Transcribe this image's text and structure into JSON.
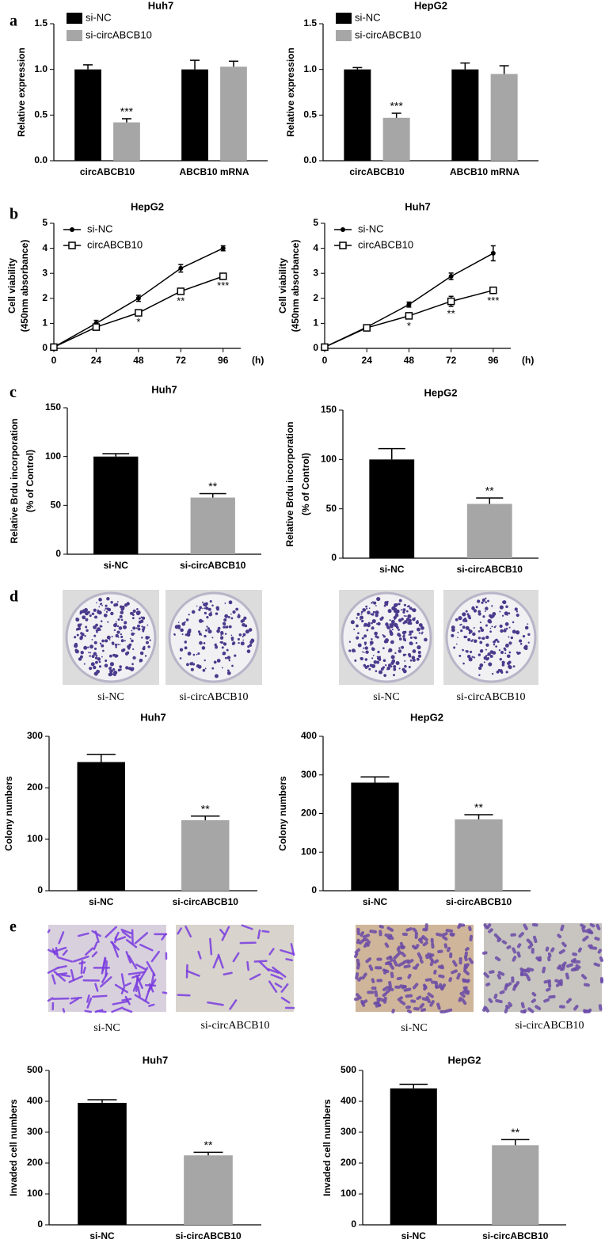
{
  "panel_labels": [
    "a",
    "b",
    "c",
    "d",
    "e"
  ],
  "photo_captions": {
    "d": [
      "si-NC",
      "si-circABCB10",
      "si-NC",
      "si-circABCB10"
    ],
    "e": [
      "si-NC",
      "si-circABCB10",
      "si-NC",
      "si-circABCB10"
    ]
  },
  "chart_data": [
    {
      "type": "bar",
      "title": "Huh7",
      "ylabel": [
        "Relative expression"
      ],
      "categories": [
        "circABCB10",
        "ABCB10 mRNA"
      ],
      "series": [
        {
          "name": "si-NC",
          "color": "#000000",
          "values": [
            1.0,
            1.0
          ],
          "errors": [
            0.05,
            0.1
          ]
        },
        {
          "name": "si-circABCB10",
          "color": "#a6a6a6",
          "values": [
            0.42,
            1.03
          ],
          "errors": [
            0.04,
            0.06
          ]
        }
      ],
      "ylim": [
        0,
        1.5
      ],
      "yticks": [
        {
          "value": 0,
          "label": "0.0"
        },
        0.5,
        {
          "value": 1,
          "label": "1.0"
        },
        1.5
      ],
      "annotations": [
        {
          "text": "***",
          "category": "circABCB10",
          "series": "si-circABCB10"
        }
      ]
    },
    {
      "type": "bar",
      "title": "HepG2",
      "ylabel": [
        "Relative expression"
      ],
      "categories": [
        "circABCB10",
        "ABCB10 mRNA"
      ],
      "series": [
        {
          "name": "si-NC",
          "color": "#000000",
          "values": [
            1.0,
            1.0
          ],
          "errors": [
            0.02,
            0.07
          ]
        },
        {
          "name": "si-circABCB10",
          "color": "#a6a6a6",
          "values": [
            0.47,
            0.95
          ],
          "errors": [
            0.05,
            0.09
          ]
        }
      ],
      "ylim": [
        0,
        1.5
      ],
      "yticks": [
        {
          "value": 0,
          "label": "0.0"
        },
        0.5,
        {
          "value": 1,
          "label": "1.0"
        },
        1.5
      ],
      "annotations": [
        {
          "text": "***",
          "category": "circABCB10",
          "series": "si-circABCB10"
        }
      ]
    },
    {
      "type": "line",
      "title": "HepG2",
      "ylabel": [
        "Cell viability",
        "(450nm absorbance)"
      ],
      "xlabel": "(h)",
      "x": [
        0,
        24,
        48,
        72,
        96
      ],
      "xlim": [
        0,
        106
      ],
      "xticks": [
        0,
        24,
        48,
        72,
        96
      ],
      "ylim": [
        0,
        5
      ],
      "yticks": [
        0,
        1,
        2,
        3,
        4,
        5
      ],
      "series": [
        {
          "name": "si-NC",
          "color": "#000000",
          "marker": "circle",
          "values": [
            0.05,
            1.0,
            2.0,
            3.2,
            4.0
          ],
          "errors": [
            0.03,
            0.12,
            0.12,
            0.15,
            0.1
          ]
        },
        {
          "name": "circABCB10",
          "color": "#000000",
          "marker": "square",
          "values": [
            0.05,
            0.85,
            1.42,
            2.28,
            2.88
          ],
          "errors": [
            0.03,
            0.08,
            0.08,
            0.1,
            0.08
          ]
        }
      ],
      "annotations": [
        {
          "text": "*",
          "x": 48,
          "series": "circABCB10"
        },
        {
          "text": "**",
          "x": 72,
          "series": "circABCB10"
        },
        {
          "text": "***",
          "x": 96,
          "series": "circABCB10"
        }
      ]
    },
    {
      "type": "line",
      "title": "Huh7",
      "ylabel": [
        "Cell viability",
        "(450nm absorbance)"
      ],
      "xlabel": "(h)",
      "x": [
        0,
        24,
        48,
        72,
        96
      ],
      "xlim": [
        0,
        106
      ],
      "xticks": [
        0,
        24,
        48,
        72,
        96
      ],
      "ylim": [
        0,
        5
      ],
      "yticks": [
        0,
        1,
        2,
        3,
        4,
        5
      ],
      "series": [
        {
          "name": "si-NC",
          "color": "#000000",
          "marker": "circle",
          "values": [
            0.05,
            0.85,
            1.75,
            2.88,
            3.8
          ],
          "errors": [
            0.02,
            0.05,
            0.1,
            0.13,
            0.3
          ]
        },
        {
          "name": "circABCB10",
          "color": "#000000",
          "marker": "square",
          "values": [
            0.05,
            0.82,
            1.3,
            1.88,
            2.32
          ],
          "errors": [
            0.02,
            0.05,
            0.12,
            0.2,
            0.12
          ]
        }
      ],
      "annotations": [
        {
          "text": "*",
          "x": 48,
          "series": "circABCB10"
        },
        {
          "text": "**",
          "x": 72,
          "series": "circABCB10"
        },
        {
          "text": "***",
          "x": 96,
          "series": "circABCB10"
        }
      ]
    },
    {
      "type": "bar",
      "title": "Huh7",
      "ylabel": [
        "Relative Brdu incorporation",
        "(% of Control)"
      ],
      "categories": [
        "si-NC",
        "si-circABCB10"
      ],
      "values": [
        100,
        58
      ],
      "errors": [
        3,
        4
      ],
      "colors": [
        "#000000",
        "#a6a6a6"
      ],
      "ylim": [
        0,
        150
      ],
      "yticks": [
        0,
        50,
        100,
        150
      ],
      "annotations": [
        {
          "text": "**",
          "category": "si-circABCB10"
        }
      ]
    },
    {
      "type": "bar",
      "title": "HepG2",
      "ylabel": [
        "Relative Brdu incorporation",
        "(% of Control)"
      ],
      "categories": [
        "si-NC",
        "si-circABCB10"
      ],
      "values": [
        100,
        55
      ],
      "errors": [
        11,
        6
      ],
      "colors": [
        "#000000",
        "#a6a6a6"
      ],
      "ylim": [
        0,
        150
      ],
      "yticks": [
        0,
        50,
        100,
        150
      ],
      "annotations": [
        {
          "text": "**",
          "category": "si-circABCB10"
        }
      ]
    },
    {
      "type": "bar",
      "title": "Huh7",
      "ylabel": [
        "Colony numbers"
      ],
      "categories": [
        "si-NC",
        "si-circABCB10"
      ],
      "values": [
        250,
        137
      ],
      "errors": [
        15,
        8
      ],
      "colors": [
        "#000000",
        "#a6a6a6"
      ],
      "ylim": [
        0,
        300
      ],
      "yticks": [
        0,
        100,
        200,
        300
      ],
      "annotations": [
        {
          "text": "**",
          "category": "si-circABCB10"
        }
      ]
    },
    {
      "type": "bar",
      "title": "HepG2",
      "ylabel": [
        "Colony numbers"
      ],
      "categories": [
        "si-NC",
        "si-circABCB10"
      ],
      "values": [
        280,
        185
      ],
      "errors": [
        15,
        12
      ],
      "colors": [
        "#000000",
        "#a6a6a6"
      ],
      "ylim": [
        0,
        400
      ],
      "yticks": [
        0,
        100,
        200,
        300,
        400
      ],
      "annotations": [
        {
          "text": "**",
          "category": "si-circABCB10"
        }
      ]
    },
    {
      "type": "bar",
      "title": "Huh7",
      "ylabel": [
        "Invaded cell numbers"
      ],
      "categories": [
        "si-NC",
        "si-circABCB10"
      ],
      "values": [
        395,
        225
      ],
      "errors": [
        10,
        10
      ],
      "colors": [
        "#000000",
        "#a6a6a6"
      ],
      "ylim": [
        0,
        500
      ],
      "yticks": [
        0,
        100,
        200,
        300,
        400,
        500
      ],
      "annotations": [
        {
          "text": "**",
          "category": "si-circABCB10"
        }
      ]
    },
    {
      "type": "bar",
      "title": "HepG2",
      "ylabel": [
        "Invaded cell numbers"
      ],
      "categories": [
        "si-NC",
        "si-circABCB10"
      ],
      "values": [
        442,
        258
      ],
      "errors": [
        13,
        18
      ],
      "colors": [
        "#000000",
        "#a6a6a6"
      ],
      "ylim": [
        0,
        500
      ],
      "yticks": [
        0,
        100,
        200,
        300,
        400,
        500
      ],
      "annotations": [
        {
          "text": "**",
          "category": "si-circABCB10"
        }
      ]
    }
  ]
}
